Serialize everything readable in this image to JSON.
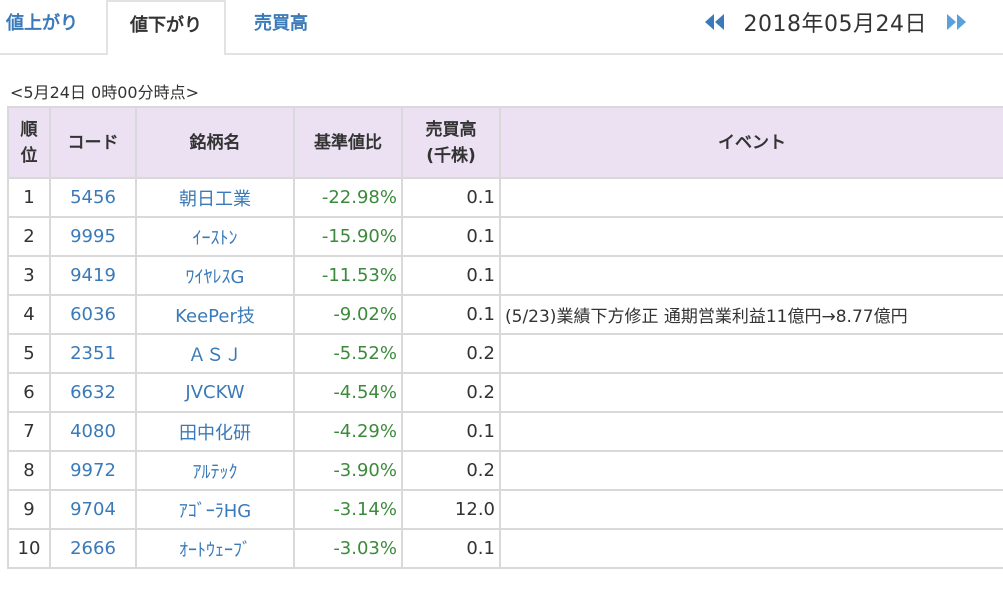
{
  "tabs": [
    {
      "label": "値上がり"
    },
    {
      "label": "値下がり"
    },
    {
      "label": "売買高"
    }
  ],
  "date_nav": {
    "date": "2018年05月24日",
    "prev_icon": "double-left-arrow",
    "next_icon": "double-right-arrow"
  },
  "timestamp": "<5月24日 0時00分時点>",
  "table": {
    "headers": {
      "rank": [
        "順",
        "位"
      ],
      "code": "コード",
      "name": "銘柄名",
      "change": "基準値比",
      "volume": [
        "売買高",
        "(千株)"
      ],
      "event": "イベント"
    },
    "rows": [
      {
        "rank": "1",
        "code": "5456",
        "name": "朝日工業",
        "change": "-22.98%",
        "volume": "0.1",
        "event": ""
      },
      {
        "rank": "2",
        "code": "9995",
        "name": "ｲｰｽﾄﾝ",
        "change": "-15.90%",
        "volume": "0.1",
        "event": ""
      },
      {
        "rank": "3",
        "code": "9419",
        "name": "ﾜｲﾔﾚｽG",
        "change": "-11.53%",
        "volume": "0.1",
        "event": ""
      },
      {
        "rank": "4",
        "code": "6036",
        "name": "KeePer技",
        "change": "-9.02%",
        "volume": "0.1",
        "event": "(5/23)業績下方修正 通期営業利益11億円→8.77億円"
      },
      {
        "rank": "5",
        "code": "2351",
        "name": "ＡＳＪ",
        "change": "-5.52%",
        "volume": "0.2",
        "event": ""
      },
      {
        "rank": "6",
        "code": "6632",
        "name": "JVCKW",
        "change": "-4.54%",
        "volume": "0.2",
        "event": ""
      },
      {
        "rank": "7",
        "code": "4080",
        "name": "田中化研",
        "change": "-4.29%",
        "volume": "0.1",
        "event": ""
      },
      {
        "rank": "8",
        "code": "9972",
        "name": "ｱﾙﾃｯｸ",
        "change": "-3.90%",
        "volume": "0.2",
        "event": ""
      },
      {
        "rank": "9",
        "code": "9704",
        "name": "ｱｺﾞｰﾗHG",
        "change": "-3.14%",
        "volume": "12.0",
        "event": ""
      },
      {
        "rank": "10",
        "code": "2666",
        "name": "ｵｰﾄｳｪｰﾌﾞ",
        "change": "-3.03%",
        "volume": "0.1",
        "event": ""
      }
    ]
  },
  "colors": {
    "link": "#3b7ab8",
    "negative": "#3c8a3c",
    "header_bg": "#ebe1f2",
    "border": "#d9d9d9"
  }
}
